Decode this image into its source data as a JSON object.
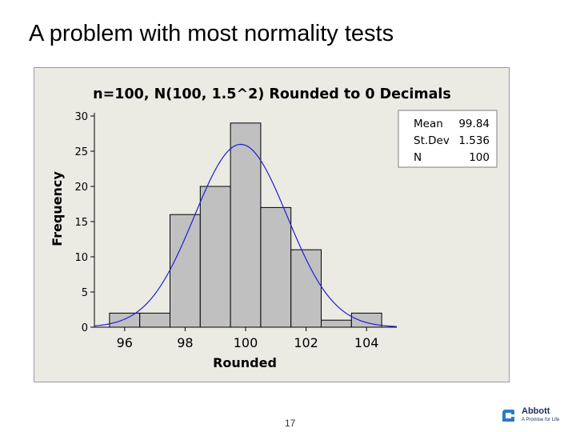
{
  "slide": {
    "title": "A problem with most normality tests",
    "page_number": "17"
  },
  "logo": {
    "name": "Abbott",
    "tagline": "A Promise for Life"
  },
  "colors": {
    "chart_background": "#ebeae3",
    "bar_fill": "#c0c0c0",
    "bar_stroke": "#000000",
    "curve": "#1f1fd6"
  },
  "chart_data": {
    "type": "bar",
    "title": "n=100, N(100, 1.5^2) Rounded to 0 Decimals",
    "xlabel": "Rounded",
    "ylabel": "Frequency",
    "categories": [
      "96",
      "97",
      "98",
      "99",
      "100",
      "101",
      "102",
      "103",
      "104"
    ],
    "values": [
      2,
      2,
      16,
      20,
      29,
      17,
      11,
      1,
      2
    ],
    "x_ticks": [
      "96",
      "98",
      "100",
      "102",
      "104"
    ],
    "y_ticks": [
      "0",
      "5",
      "10",
      "15",
      "20",
      "25",
      "30"
    ],
    "ylim": [
      0,
      30
    ],
    "xlim": [
      95,
      105
    ],
    "fit_curve": {
      "type": "normal",
      "mean": 99.84,
      "stdev": 1.536,
      "n": 100,
      "bin_width": 1
    },
    "stats": [
      {
        "label": "Mean",
        "value": "99.84"
      },
      {
        "label": "St.Dev",
        "value": "1.536"
      },
      {
        "label": "N",
        "value": "100"
      }
    ]
  }
}
